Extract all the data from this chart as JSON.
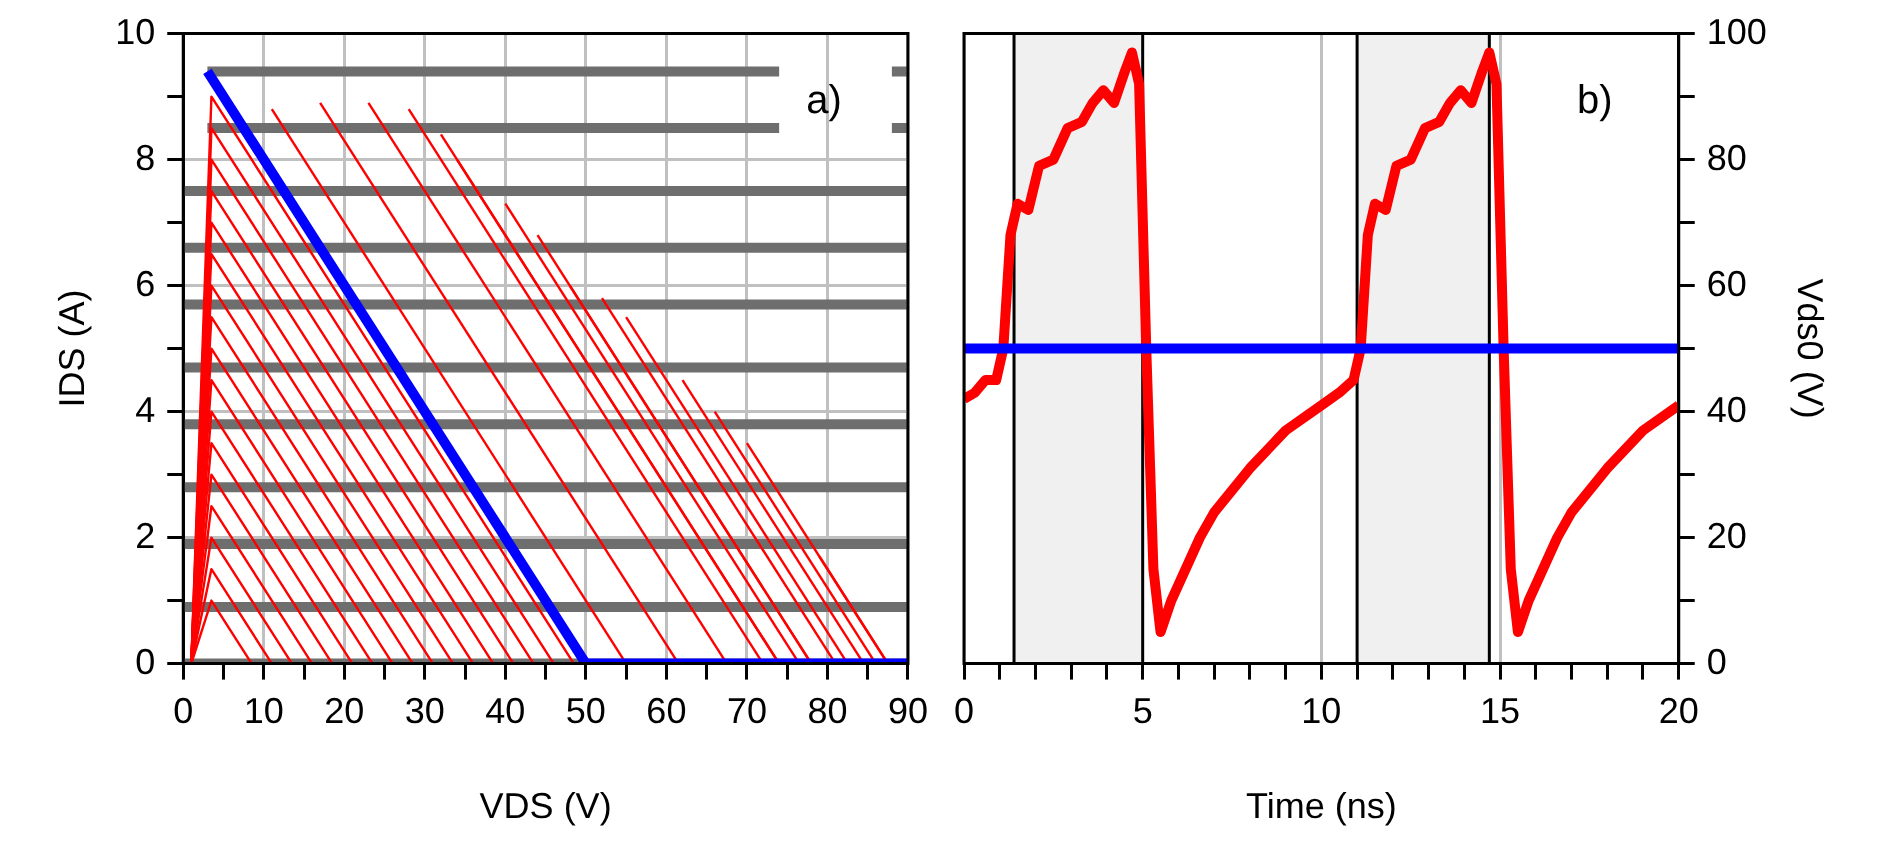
{
  "chart_data": [
    {
      "type": "line",
      "xlabel": "VDS (V)",
      "ylabel": "IDS (A)",
      "annotations": [
        "a)"
      ],
      "grid": true,
      "legend": false,
      "marker": "none",
      "line_style": "solid",
      "xlim": [
        0,
        90
      ],
      "xticks": [
        0,
        {
          "value": 5,
          "label": null
        },
        10,
        {
          "value": 15,
          "label": null
        },
        20,
        {
          "value": 25,
          "label": null
        },
        30,
        {
          "value": 35,
          "label": null
        },
        40,
        {
          "value": 45,
          "label": null
        },
        50,
        {
          "value": 55,
          "label": null
        },
        60,
        {
          "value": 65,
          "label": null
        },
        70,
        {
          "value": 75,
          "label": null
        },
        80,
        {
          "value": 85,
          "label": null
        },
        90
      ],
      "ylim": [
        0,
        10
      ],
      "yticks": [
        0,
        {
          "value": 1,
          "label": null
        },
        2,
        {
          "value": 3,
          "label": null
        },
        4,
        {
          "value": 5,
          "label": null
        },
        6,
        {
          "value": 7,
          "label": null
        },
        8,
        {
          "value": 9,
          "label": null
        },
        10
      ],
      "series": [
        {
          "color": "#6e6e6e",
          "x": [
            3,
            74,
            81,
            88,
            90
          ],
          "values": [
            9.4,
            9.4,
            null,
            9.4,
            9.4
          ]
        },
        {
          "color": "#6e6e6e",
          "x": [
            3,
            74,
            81,
            88,
            90
          ],
          "values": [
            8.5,
            8.5,
            null,
            8.5,
            8.5
          ]
        },
        {
          "color": "#6e6e6e",
          "x": [
            0,
            90
          ],
          "values": [
            7.5,
            7.5
          ]
        },
        {
          "color": "#6e6e6e",
          "x": [
            0,
            90
          ],
          "values": [
            6.6,
            6.6
          ]
        },
        {
          "color": "#6e6e6e",
          "x": [
            0,
            90
          ],
          "values": [
            5.7,
            5.7
          ]
        },
        {
          "color": "#6e6e6e",
          "x": [
            0,
            90
          ],
          "values": [
            4.7,
            4.7
          ]
        },
        {
          "color": "#6e6e6e",
          "x": [
            0,
            90
          ],
          "values": [
            3.8,
            3.8
          ]
        },
        {
          "color": "#6e6e6e",
          "x": [
            0,
            90
          ],
          "values": [
            2.8,
            2.8
          ]
        },
        {
          "color": "#6e6e6e",
          "x": [
            0,
            90
          ],
          "values": [
            1.9,
            1.9
          ]
        },
        {
          "color": "#6e6e6e",
          "x": [
            0,
            90
          ],
          "values": [
            0.9,
            0.9
          ]
        },
        {
          "color": "#6e6e6e",
          "x": [
            0,
            90
          ],
          "values": [
            0,
            0
          ]
        },
        {
          "color": "#ff0000",
          "x": [
            1,
            3.5,
            48.5
          ],
          "values": [
            0,
            9,
            0
          ]
        },
        {
          "color": "#ff0000",
          "x": [
            1,
            3.5,
            46
          ],
          "values": [
            0,
            8.5,
            0
          ]
        },
        {
          "color": "#ff0000",
          "x": [
            1,
            3.5,
            43.5
          ],
          "values": [
            0,
            8,
            0
          ]
        },
        {
          "color": "#ff0000",
          "x": [
            1,
            3.5,
            41
          ],
          "values": [
            0,
            7.5,
            0
          ]
        },
        {
          "color": "#ff0000",
          "x": [
            1,
            3.5,
            38.5
          ],
          "values": [
            0,
            7,
            0
          ]
        },
        {
          "color": "#ff0000",
          "x": [
            1,
            3.5,
            36
          ],
          "values": [
            0,
            6.5,
            0
          ]
        },
        {
          "color": "#ff0000",
          "x": [
            1,
            3.5,
            33.5
          ],
          "values": [
            0,
            6,
            0
          ]
        },
        {
          "color": "#ff0000",
          "x": [
            1,
            3.5,
            31
          ],
          "values": [
            0,
            5.5,
            0
          ]
        },
        {
          "color": "#ff0000",
          "x": [
            1,
            3.5,
            28.5
          ],
          "values": [
            0,
            5,
            0
          ]
        },
        {
          "color": "#ff0000",
          "x": [
            1,
            3.5,
            26
          ],
          "values": [
            0,
            4.5,
            0
          ]
        },
        {
          "color": "#ff0000",
          "x": [
            1,
            3.5,
            23.5
          ],
          "values": [
            0,
            4,
            0
          ]
        },
        {
          "color": "#ff0000",
          "x": [
            1,
            3.5,
            21
          ],
          "values": [
            0,
            3.5,
            0
          ]
        },
        {
          "color": "#ff0000",
          "x": [
            1,
            3.5,
            18.5
          ],
          "values": [
            0,
            3,
            0
          ]
        },
        {
          "color": "#ff0000",
          "x": [
            1,
            3.5,
            16
          ],
          "values": [
            0,
            2.5,
            0
          ]
        },
        {
          "color": "#ff0000",
          "x": [
            1,
            3.5,
            13.5
          ],
          "values": [
            0,
            2,
            0
          ]
        },
        {
          "color": "#ff0000",
          "x": [
            1,
            3.5,
            11
          ],
          "values": [
            0,
            1.5,
            0
          ]
        },
        {
          "color": "#ff0000",
          "x": [
            1,
            3.5,
            8.5
          ],
          "values": [
            0,
            1,
            0
          ]
        },
        {
          "color": "#ff0000",
          "x": [
            11,
            55
          ],
          "values": [
            8.8,
            0
          ]
        },
        {
          "color": "#ff0000",
          "x": [
            17,
            61.5
          ],
          "values": [
            8.9,
            0
          ]
        },
        {
          "color": "#ff0000",
          "x": [
            23,
            67.5
          ],
          "values": [
            8.9,
            0
          ]
        },
        {
          "color": "#ff0000",
          "x": [
            28,
            72
          ],
          "values": [
            8.8,
            0
          ]
        },
        {
          "color": "#ff0000",
          "x": [
            32,
            74
          ],
          "values": [
            8.4,
            0
          ]
        },
        {
          "color": "#ff0000",
          "x": [
            34,
            74
          ],
          "values": [
            8,
            0
          ]
        },
        {
          "color": "#ff0000",
          "x": [
            40,
            76.5
          ],
          "values": [
            7.3,
            0
          ]
        },
        {
          "color": "#ff0000",
          "x": [
            44,
            78
          ],
          "values": [
            6.8,
            0
          ]
        },
        {
          "color": "#ff0000",
          "x": [
            48,
            78
          ],
          "values": [
            6,
            0
          ]
        },
        {
          "color": "#ff0000",
          "x": [
            52,
            81
          ],
          "values": [
            5.8,
            0
          ]
        },
        {
          "color": "#ff0000",
          "x": [
            55,
            82.5
          ],
          "values": [
            5.5,
            0
          ]
        },
        {
          "color": "#ff0000",
          "x": [
            62,
            84.5
          ],
          "values": [
            4.5,
            0
          ]
        },
        {
          "color": "#ff0000",
          "x": [
            66,
            86
          ],
          "values": [
            4,
            0
          ]
        },
        {
          "color": "#ff0000",
          "x": [
            70,
            87.5
          ],
          "values": [
            3.5,
            0
          ]
        },
        {
          "color": "#ff0000",
          "x": [
            79,
            87.5
          ],
          "values": [
            1.7,
            0
          ]
        },
        {
          "color": "#0000ff",
          "x": [
            3,
            50,
            90
          ],
          "values": [
            9.4,
            0,
            0
          ]
        }
      ]
    },
    {
      "type": "line",
      "xlabel": "Time (ns)",
      "y2label": "Vds0 (V)",
      "annotations": [
        "b)"
      ],
      "grid": "x",
      "legend": false,
      "marker": "none",
      "line_style": "solid",
      "xlim": [
        0,
        20
      ],
      "xticks": [
        0,
        {
          "value": 1,
          "label": null
        },
        {
          "value": 2,
          "label": null
        },
        {
          "value": 3,
          "label": null
        },
        {
          "value": 4,
          "label": null
        },
        5,
        {
          "value": 6,
          "label": null
        },
        {
          "value": 7,
          "label": null
        },
        {
          "value": 8,
          "label": null
        },
        {
          "value": 9,
          "label": null
        },
        10,
        {
          "value": 11,
          "label": null
        },
        {
          "value": 12,
          "label": null
        },
        {
          "value": 13,
          "label": null
        },
        {
          "value": 14,
          "label": null
        },
        15,
        {
          "value": 16,
          "label": null
        },
        {
          "value": 17,
          "label": null
        },
        {
          "value": 18,
          "label": null
        },
        {
          "value": 19,
          "label": null
        },
        20
      ],
      "y2lim": [
        0,
        100
      ],
      "y2ticks": [
        0,
        {
          "value": 10,
          "label": null
        },
        20,
        {
          "value": 30,
          "label": null
        },
        40,
        {
          "value": 50,
          "label": null
        },
        60,
        {
          "value": 70,
          "label": null
        },
        80,
        {
          "value": 90,
          "label": null
        },
        100
      ],
      "bands": [
        {
          "axis": "x",
          "from": 1.4,
          "to": 5,
          "color": "#f0f0f0"
        },
        {
          "axis": "x",
          "from": 11,
          "to": 14.7,
          "color": "#f0f0f0"
        }
      ],
      "series": [
        {
          "color": "#ff0000",
          "axis": "y2",
          "x": [
            0,
            0.3,
            0.6,
            0.9,
            1.1,
            1.3,
            1.5,
            1.8,
            2.1,
            2.5,
            2.9,
            3.3,
            3.6,
            3.9,
            4.2,
            4.5,
            4.7,
            4.9,
            5.1,
            5.3,
            5.5,
            5.8,
            6.2,
            6.6,
            7,
            8,
            9,
            10,
            10.5,
            10.9,
            11.1,
            11.3,
            11.5,
            11.8,
            12.1,
            12.5,
            12.9,
            13.3,
            13.6,
            13.9,
            14.2,
            14.5,
            14.7,
            14.9,
            15.1,
            15.3,
            15.5,
            15.8,
            16.2,
            16.6,
            17,
            18,
            19,
            20
          ],
          "values": [
            42,
            43,
            45,
            45,
            50,
            68,
            73,
            72,
            79,
            80,
            85,
            86,
            89,
            91,
            89,
            94,
            97,
            92,
            50,
            15,
            5,
            10,
            15,
            20,
            24,
            31,
            37,
            41,
            43,
            45,
            50,
            68,
            73,
            72,
            79,
            80,
            85,
            86,
            89,
            91,
            89,
            94,
            97,
            92,
            50,
            15,
            5,
            10,
            15,
            20,
            24,
            31,
            37,
            41
          ]
        },
        {
          "color": "#0000ff",
          "axis": "y2",
          "x": [
            0,
            20
          ],
          "values": [
            50,
            50
          ]
        }
      ]
    }
  ]
}
